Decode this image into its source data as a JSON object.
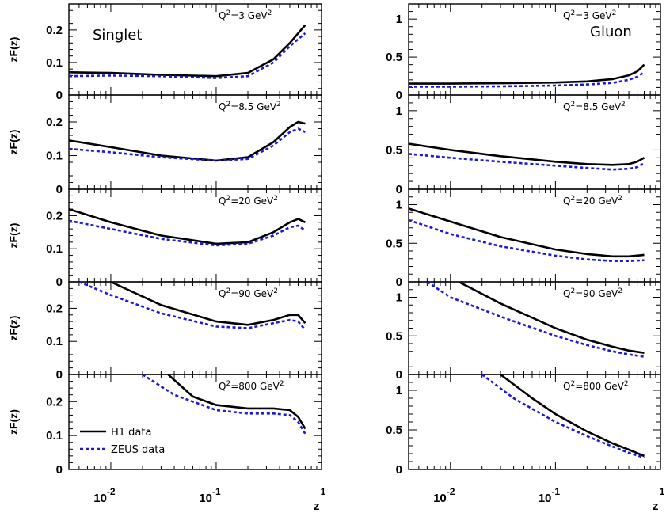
{
  "figure": {
    "ylabel": "zF(z)",
    "xlabel": "z",
    "xtick_labels": [
      {
        "base": "10",
        "exp": "-2"
      },
      {
        "base": "10",
        "exp": "-1"
      },
      {
        "base": "",
        "exp": "1"
      }
    ],
    "legend": [
      {
        "label": "H1 data",
        "color": "#000000",
        "dash": "solid"
      },
      {
        "label": "ZEUS data",
        "color": "#1a1ad6",
        "dash": "dotted"
      }
    ]
  },
  "chart_data": [
    {
      "type": "line",
      "column": "Singlet",
      "title": "Singlet",
      "q2_label": "Q",
      "q2_value": "=3 GeV",
      "ylim": [
        0,
        0.28
      ],
      "yticks": [
        0,
        0.1,
        0.2
      ],
      "xscale": "log",
      "xlim": [
        0.004,
        1
      ],
      "series": [
        {
          "name": "H1 data",
          "x": [
            0.004,
            0.01,
            0.03,
            0.1,
            0.2,
            0.35,
            0.5,
            0.7
          ],
          "y": [
            0.07,
            0.068,
            0.062,
            0.058,
            0.068,
            0.11,
            0.16,
            0.215
          ]
        },
        {
          "name": "ZEUS data",
          "x": [
            0.004,
            0.01,
            0.03,
            0.1,
            0.2,
            0.35,
            0.5,
            0.7
          ],
          "y": [
            0.058,
            0.06,
            0.058,
            0.052,
            0.058,
            0.1,
            0.15,
            0.19
          ]
        }
      ]
    },
    {
      "type": "line",
      "column": "Gluon",
      "title": "Gluon",
      "q2_label": "Q",
      "q2_value": "=3 GeV",
      "ylim": [
        0,
        1.2
      ],
      "yticks": [
        0,
        0.5,
        1
      ],
      "xscale": "log",
      "xlim": [
        0.004,
        1
      ],
      "series": [
        {
          "name": "H1 data",
          "x": [
            0.004,
            0.01,
            0.03,
            0.1,
            0.2,
            0.35,
            0.5,
            0.6,
            0.7
          ],
          "y": [
            0.15,
            0.15,
            0.155,
            0.165,
            0.18,
            0.21,
            0.26,
            0.31,
            0.4
          ]
        },
        {
          "name": "ZEUS data",
          "x": [
            0.004,
            0.01,
            0.03,
            0.1,
            0.2,
            0.35,
            0.5,
            0.6,
            0.7
          ],
          "y": [
            0.11,
            0.11,
            0.115,
            0.125,
            0.14,
            0.16,
            0.2,
            0.24,
            0.3
          ]
        }
      ]
    },
    {
      "type": "line",
      "column": "Singlet",
      "title": "",
      "q2_label": "Q",
      "q2_value": "=8.5 GeV",
      "ylim": [
        0,
        0.28
      ],
      "yticks": [
        0,
        0.1,
        0.2
      ],
      "xscale": "log",
      "xlim": [
        0.004,
        1
      ],
      "series": [
        {
          "name": "H1 data",
          "x": [
            0.004,
            0.01,
            0.03,
            0.1,
            0.2,
            0.35,
            0.5,
            0.6,
            0.7
          ],
          "y": [
            0.145,
            0.125,
            0.1,
            0.085,
            0.095,
            0.14,
            0.185,
            0.2,
            0.195
          ]
        },
        {
          "name": "ZEUS data",
          "x": [
            0.004,
            0.01,
            0.03,
            0.1,
            0.2,
            0.35,
            0.5,
            0.6,
            0.7
          ],
          "y": [
            0.12,
            0.11,
            0.095,
            0.085,
            0.09,
            0.13,
            0.17,
            0.18,
            0.17
          ]
        }
      ]
    },
    {
      "type": "line",
      "column": "Gluon",
      "title": "",
      "q2_label": "Q",
      "q2_value": "=8.5 GeV",
      "ylim": [
        0,
        1.2
      ],
      "yticks": [
        0,
        0.5,
        1
      ],
      "xscale": "log",
      "xlim": [
        0.004,
        1
      ],
      "series": [
        {
          "name": "H1 data",
          "x": [
            0.004,
            0.01,
            0.03,
            0.1,
            0.2,
            0.35,
            0.5,
            0.6,
            0.7
          ],
          "y": [
            0.58,
            0.5,
            0.42,
            0.35,
            0.32,
            0.31,
            0.32,
            0.35,
            0.4
          ]
        },
        {
          "name": "ZEUS data",
          "x": [
            0.004,
            0.01,
            0.03,
            0.1,
            0.2,
            0.35,
            0.5,
            0.6,
            0.7
          ],
          "y": [
            0.45,
            0.4,
            0.35,
            0.3,
            0.27,
            0.25,
            0.26,
            0.28,
            0.33
          ]
        }
      ]
    },
    {
      "type": "line",
      "column": "Singlet",
      "title": "",
      "q2_label": "Q",
      "q2_value": "=20 GeV",
      "ylim": [
        0,
        0.28
      ],
      "yticks": [
        0,
        0.1,
        0.2
      ],
      "xscale": "log",
      "xlim": [
        0.004,
        1
      ],
      "series": [
        {
          "name": "H1 data",
          "x": [
            0.004,
            0.01,
            0.03,
            0.1,
            0.2,
            0.35,
            0.5,
            0.6,
            0.7
          ],
          "y": [
            0.22,
            0.18,
            0.14,
            0.115,
            0.12,
            0.15,
            0.18,
            0.19,
            0.18
          ]
        },
        {
          "name": "ZEUS data",
          "x": [
            0.004,
            0.01,
            0.03,
            0.1,
            0.2,
            0.35,
            0.5,
            0.6,
            0.7
          ],
          "y": [
            0.185,
            0.16,
            0.13,
            0.11,
            0.115,
            0.14,
            0.165,
            0.17,
            0.155
          ]
        }
      ]
    },
    {
      "type": "line",
      "column": "Gluon",
      "title": "",
      "q2_label": "Q",
      "q2_value": "=20 GeV",
      "ylim": [
        0,
        1.2
      ],
      "yticks": [
        0,
        0.5,
        1
      ],
      "xscale": "log",
      "xlim": [
        0.004,
        1
      ],
      "series": [
        {
          "name": "H1 data",
          "x": [
            0.004,
            0.01,
            0.03,
            0.1,
            0.2,
            0.35,
            0.5,
            0.7
          ],
          "y": [
            0.95,
            0.78,
            0.58,
            0.42,
            0.36,
            0.33,
            0.33,
            0.35
          ]
        },
        {
          "name": "ZEUS data",
          "x": [
            0.004,
            0.01,
            0.03,
            0.1,
            0.2,
            0.35,
            0.5,
            0.7
          ],
          "y": [
            0.8,
            0.62,
            0.46,
            0.34,
            0.29,
            0.27,
            0.27,
            0.28
          ]
        }
      ]
    },
    {
      "type": "line",
      "column": "Singlet",
      "title": "",
      "q2_label": "Q",
      "q2_value": "=90 GeV",
      "ylim": [
        0,
        0.28
      ],
      "yticks": [
        0,
        0.1,
        0.2
      ],
      "xscale": "log",
      "xlim": [
        0.004,
        1
      ],
      "series": [
        {
          "name": "H1 data",
          "x": [
            0.01,
            0.03,
            0.1,
            0.2,
            0.35,
            0.5,
            0.6,
            0.7
          ],
          "y": [
            0.28,
            0.21,
            0.16,
            0.15,
            0.165,
            0.18,
            0.18,
            0.155
          ]
        },
        {
          "name": "ZEUS data",
          "x": [
            0.005,
            0.01,
            0.03,
            0.1,
            0.2,
            0.35,
            0.5,
            0.6,
            0.7
          ],
          "y": [
            0.28,
            0.24,
            0.185,
            0.145,
            0.14,
            0.155,
            0.165,
            0.16,
            0.135
          ]
        }
      ]
    },
    {
      "type": "line",
      "column": "Gluon",
      "title": "",
      "q2_label": "Q",
      "q2_value": "=90 GeV",
      "ylim": [
        0,
        1.2
      ],
      "yticks": [
        0,
        0.5,
        1
      ],
      "xscale": "log",
      "xlim": [
        0.004,
        1
      ],
      "series": [
        {
          "name": "H1 data",
          "x": [
            0.012,
            0.03,
            0.1,
            0.2,
            0.35,
            0.5,
            0.7
          ],
          "y": [
            1.2,
            0.92,
            0.6,
            0.45,
            0.36,
            0.31,
            0.28
          ]
        },
        {
          "name": "ZEUS data",
          "x": [
            0.006,
            0.01,
            0.03,
            0.1,
            0.2,
            0.35,
            0.5,
            0.7
          ],
          "y": [
            1.2,
            1.0,
            0.75,
            0.5,
            0.38,
            0.3,
            0.26,
            0.23
          ]
        }
      ]
    },
    {
      "type": "line",
      "column": "Singlet",
      "title": "",
      "q2_label": "Q",
      "q2_value": "=800 GeV",
      "ylim": [
        0,
        0.28
      ],
      "yticks": [
        0,
        0.1,
        0.2
      ],
      "xscale": "log",
      "xlim": [
        0.004,
        1
      ],
      "series": [
        {
          "name": "H1 data",
          "x": [
            0.035,
            0.06,
            0.1,
            0.2,
            0.35,
            0.5,
            0.6,
            0.7
          ],
          "y": [
            0.28,
            0.215,
            0.19,
            0.18,
            0.18,
            0.175,
            0.155,
            0.12
          ]
        },
        {
          "name": "ZEUS data",
          "x": [
            0.02,
            0.04,
            0.1,
            0.2,
            0.35,
            0.5,
            0.6,
            0.7
          ],
          "y": [
            0.28,
            0.22,
            0.175,
            0.165,
            0.165,
            0.16,
            0.14,
            0.105
          ]
        }
      ]
    },
    {
      "type": "line",
      "column": "Gluon",
      "title": "",
      "q2_label": "Q",
      "q2_value": "=800 GeV",
      "ylim": [
        0,
        1.2
      ],
      "yticks": [
        0,
        0.5,
        1
      ],
      "xscale": "log",
      "xlim": [
        0.004,
        1
      ],
      "series": [
        {
          "name": "H1 data",
          "x": [
            0.03,
            0.06,
            0.1,
            0.2,
            0.35,
            0.5,
            0.7
          ],
          "y": [
            1.2,
            0.9,
            0.7,
            0.48,
            0.33,
            0.25,
            0.17
          ]
        },
        {
          "name": "ZEUS data",
          "x": [
            0.02,
            0.04,
            0.1,
            0.2,
            0.35,
            0.5,
            0.7
          ],
          "y": [
            1.2,
            0.9,
            0.6,
            0.42,
            0.29,
            0.21,
            0.15
          ]
        }
      ]
    }
  ]
}
